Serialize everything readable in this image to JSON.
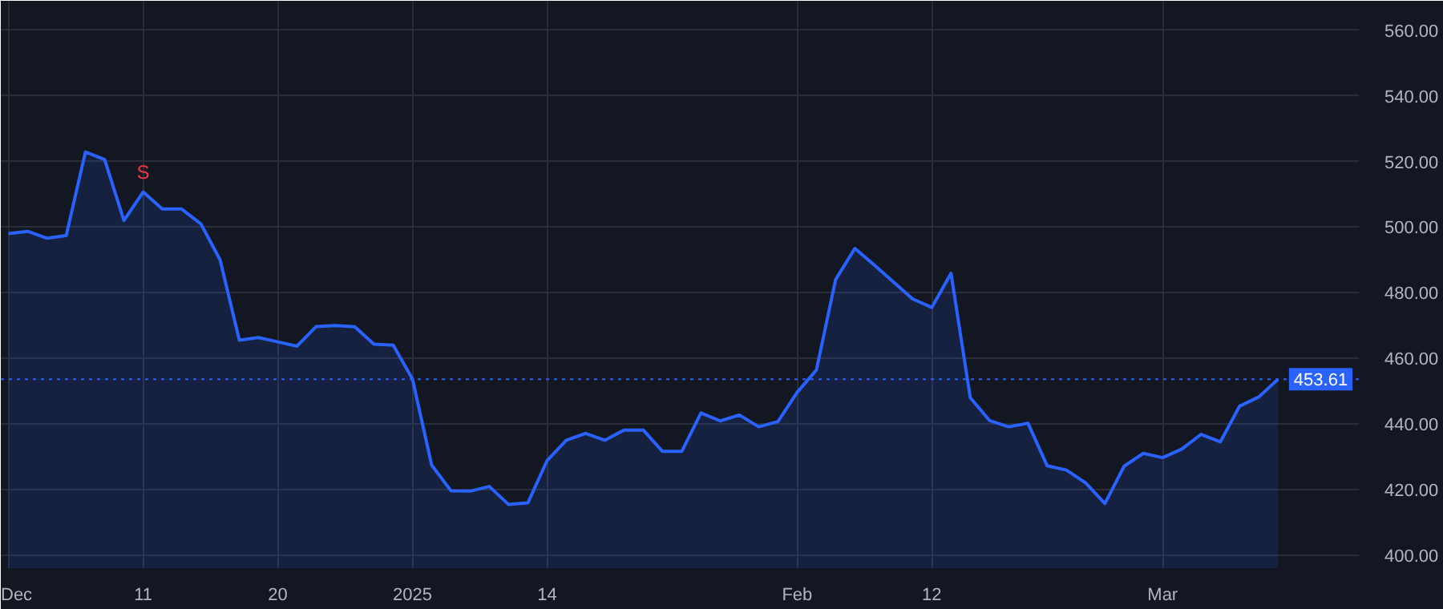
{
  "chart_data": {
    "type": "area",
    "categories": [
      "Dec",
      null,
      null,
      null,
      null,
      null,
      null,
      "11",
      null,
      null,
      null,
      null,
      null,
      null,
      "20",
      null,
      null,
      null,
      null,
      null,
      null,
      "2025",
      null,
      null,
      null,
      null,
      null,
      null,
      "14",
      null,
      null,
      null,
      null,
      null,
      null,
      null,
      null,
      null,
      null,
      null,
      null,
      "Feb",
      null,
      null,
      null,
      null,
      null,
      null,
      "12",
      null,
      null,
      null,
      null,
      null,
      null,
      null,
      null,
      null,
      null,
      null,
      "Mar",
      null,
      null,
      null,
      null,
      null,
      null
    ],
    "series": [
      {
        "color": "#2962ff",
        "values": [
          498,
          498.7,
          496.6,
          497.4,
          522.9,
          520.6,
          502,
          510.7,
          505.5,
          505.5,
          501,
          490,
          465.5,
          466.3,
          465,
          463.7,
          469.7,
          470,
          469.6,
          464.3,
          464,
          453.7,
          427.4,
          419.6,
          419.5,
          420.9,
          415.4,
          415.9,
          428.8,
          435,
          437.1,
          435,
          438.1,
          438.1,
          431.6,
          431.6,
          443.3,
          440.9,
          442.7,
          439.1,
          440.7,
          449.6,
          456.4,
          484,
          493.5,
          488.5,
          483.3,
          478.1,
          475.5,
          485.9,
          448,
          441,
          439.1,
          440.2,
          427.2,
          425.9,
          422,
          415.7,
          427.1,
          431,
          429.7,
          432.3,
          436.8,
          434.5,
          445.4,
          448.2,
          453.61
        ]
      }
    ],
    "ylim": [
      396,
      569
    ],
    "yticks": [
      {
        "value": 400,
        "label": "400.00"
      },
      {
        "value": 420,
        "label": "420.00"
      },
      {
        "value": 440,
        "label": "440.00"
      },
      {
        "value": 460,
        "label": "460.00"
      },
      {
        "value": 480,
        "label": "480.00"
      },
      {
        "value": 500,
        "label": "500.00"
      },
      {
        "value": 520,
        "label": "520.00"
      },
      {
        "value": 540,
        "label": "540.00"
      },
      {
        "value": 560,
        "label": "560.00"
      }
    ],
    "ref_lines": [
      {
        "axis": "y",
        "value": 453.61,
        "label": "453.61",
        "color": "#2962ff",
        "line_style": "dotted"
      }
    ],
    "annotations": [
      {
        "text": "S",
        "x": "11",
        "y": 510.7
      }
    ],
    "grid": true
  }
}
